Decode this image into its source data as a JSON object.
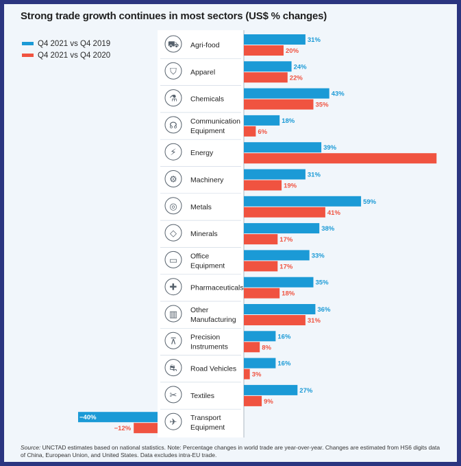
{
  "chart_data": {
    "type": "bar",
    "title": "Strong trade growth continues in most sectors (US$ % changes)",
    "categories": [
      [
        "Agri-food"
      ],
      [
        "Apparel"
      ],
      [
        "Chemicals"
      ],
      [
        "Communication",
        "Equipment"
      ],
      [
        "Energy"
      ],
      [
        "Machinery"
      ],
      [
        "Metals"
      ],
      [
        "Minerals"
      ],
      [
        "Office",
        "Equipment"
      ],
      [
        "Pharmaceuticals"
      ],
      [
        "Other",
        "Manufacturing"
      ],
      [
        "Precision",
        "Instruments"
      ],
      [
        "Road Vehicles"
      ],
      [
        "Textiles"
      ],
      [
        "Transport",
        "Equipment"
      ]
    ],
    "icons": [
      "tractor-icon",
      "jacket-icon",
      "flask-icon",
      "headset-icon",
      "lightning-icon",
      "gear-icon",
      "metal-coils-icon",
      "gem-icon",
      "computer-icon",
      "medical-cross-icon",
      "factory-icon",
      "compass-icon",
      "car-icon",
      "sewing-machine-icon",
      "airplane-icon"
    ],
    "series": [
      {
        "name": "Q4 2021 vs Q4 2019",
        "color": "#1b9ad6",
        "values": [
          31,
          24,
          43,
          18,
          39,
          31,
          59,
          38,
          33,
          35,
          36,
          16,
          16,
          27,
          -40
        ]
      },
      {
        "name": "Q4 2021 vs Q4 2020",
        "color": "#f05340",
        "values": [
          20,
          22,
          35,
          6,
          97,
          19,
          41,
          17,
          17,
          18,
          31,
          8,
          3,
          9,
          -12
        ]
      }
    ],
    "value_suffix": "%",
    "orientation": "horizontal",
    "xlim": [
      -48,
      97
    ],
    "grid": false,
    "legend": "top-left"
  },
  "source_label": "Source:",
  "source_text": " UNCTAD estimates based on national statistics. Note: Percentage changes in world trade are year-over-year. Changes are estimated from HS6 digits data of China, European Union, and United States. Data excludes intra-EU trade."
}
